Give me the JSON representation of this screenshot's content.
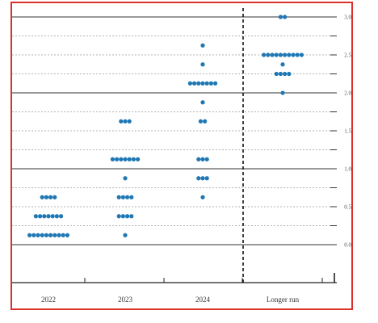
{
  "chart_data": {
    "type": "scatter",
    "title": "",
    "xlabel": "",
    "ylabel": "",
    "categories": [
      "2022",
      "2023",
      "2024",
      "Longer run"
    ],
    "ylim": [
      0.0,
      3.0
    ],
    "y_ticks": [
      "0.0",
      "0.5",
      "1.0",
      "1.5",
      "2.0",
      "2.5",
      "3.0"
    ],
    "grid": true,
    "dot_color": "#1f78b4",
    "divider": "dashed vertical line between 2024 and Longer run",
    "points": [
      {
        "category": "2022",
        "y": 0.125,
        "count": 10
      },
      {
        "category": "2022",
        "y": 0.375,
        "count": 7
      },
      {
        "category": "2022",
        "y": 0.625,
        "count": 4
      },
      {
        "category": "2023",
        "y": 0.125,
        "count": 1
      },
      {
        "category": "2023",
        "y": 0.375,
        "count": 4
      },
      {
        "category": "2023",
        "y": 0.625,
        "count": 4
      },
      {
        "category": "2023",
        "y": 0.875,
        "count": 1
      },
      {
        "category": "2023",
        "y": 1.125,
        "count": 7
      },
      {
        "category": "2023",
        "y": 1.625,
        "count": 3
      },
      {
        "category": "2024",
        "y": 0.625,
        "count": 1
      },
      {
        "category": "2024",
        "y": 0.875,
        "count": 3
      },
      {
        "category": "2024",
        "y": 1.125,
        "count": 3
      },
      {
        "category": "2024",
        "y": 1.625,
        "count": 2
      },
      {
        "category": "2024",
        "y": 1.875,
        "count": 1
      },
      {
        "category": "2024",
        "y": 2.125,
        "count": 7
      },
      {
        "category": "2024",
        "y": 2.375,
        "count": 1
      },
      {
        "category": "2024",
        "y": 2.625,
        "count": 1
      },
      {
        "category": "Longer run",
        "y": 2.0,
        "count": 1
      },
      {
        "category": "Longer run",
        "y": 2.25,
        "count": 4
      },
      {
        "category": "Longer run",
        "y": 2.375,
        "count": 1
      },
      {
        "category": "Longer run",
        "y": 2.5,
        "count": 10
      },
      {
        "category": "Longer run",
        "y": 3.0,
        "count": 2
      }
    ]
  }
}
